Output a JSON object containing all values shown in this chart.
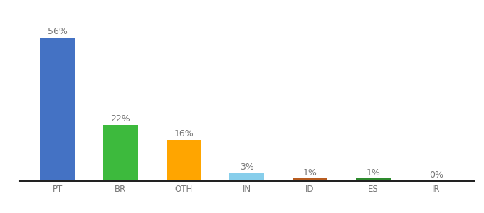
{
  "categories": [
    "PT",
    "BR",
    "OTH",
    "IN",
    "ID",
    "ES",
    "IR"
  ],
  "values": [
    56,
    22,
    16,
    3,
    1,
    1,
    0
  ],
  "labels": [
    "56%",
    "22%",
    "16%",
    "3%",
    "1%",
    "1%",
    "0%"
  ],
  "bar_colors": [
    "#4472c4",
    "#3dba3d",
    "#ffa500",
    "#87ceeb",
    "#b85c20",
    "#2e8b2e",
    "#d3d3d3"
  ],
  "background_color": "#ffffff",
  "ylim": [
    0,
    64
  ],
  "label_fontsize": 9,
  "tick_fontsize": 8.5,
  "tick_color": "#777777",
  "label_color": "#777777",
  "bar_width": 0.55
}
